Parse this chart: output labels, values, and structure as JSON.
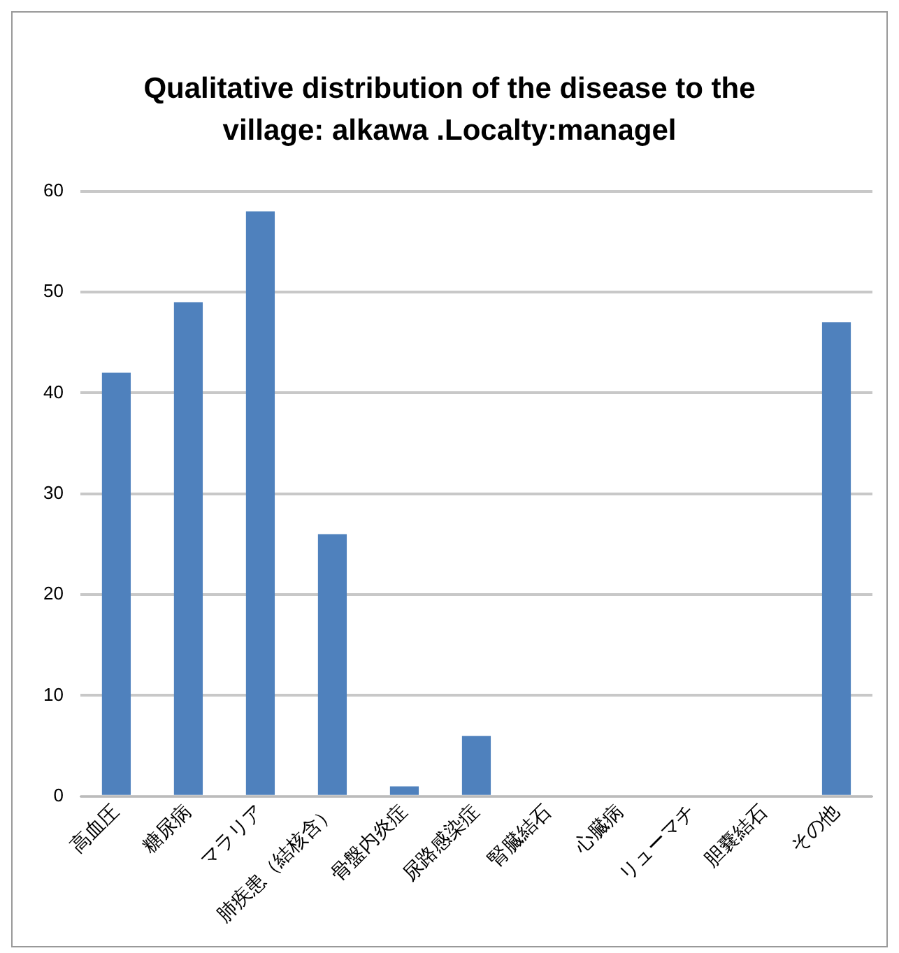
{
  "chart_data": {
    "type": "bar",
    "title": "Qualitative distribution of the disease to the village: alkawa .Localty:managel",
    "categories": [
      "高血圧",
      "糖尿病",
      "マラリア",
      "肺疾患（結核含）",
      "骨盤内炎症",
      "尿路感染症",
      "腎臓結石",
      "心臓病",
      "リューマチ",
      "胆嚢結石",
      "その他"
    ],
    "values": [
      42,
      49,
      58,
      26,
      1,
      6,
      0,
      0,
      0,
      0,
      47
    ],
    "color": "#4f81bd",
    "ylim": [
      0,
      60
    ],
    "yticks": [
      0,
      10,
      20,
      30,
      40,
      50,
      60
    ],
    "grid": "y"
  }
}
